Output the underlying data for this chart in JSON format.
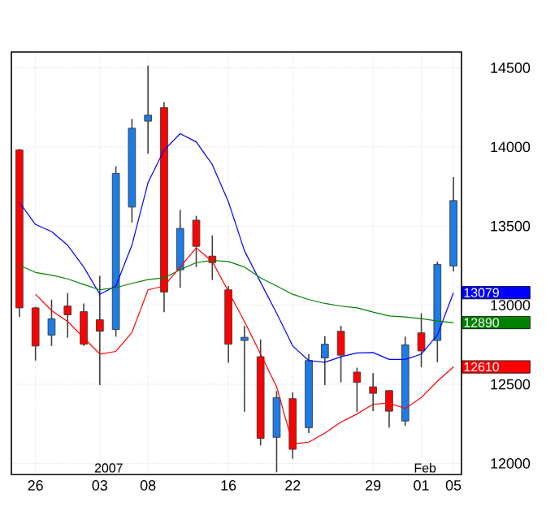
{
  "chart_data": {
    "type": "candlestick",
    "categories": [
      null,
      "26",
      null,
      null,
      null,
      "03",
      null,
      null,
      "08",
      null,
      null,
      null,
      null,
      "16",
      null,
      null,
      null,
      "22",
      null,
      null,
      null,
      null,
      "29",
      null,
      null,
      "01",
      null,
      "05"
    ],
    "ohlc": [
      [
        13981,
        13988,
        12925,
        12983
      ],
      [
        12983,
        12990,
        12650,
        12742
      ],
      [
        12811,
        13035,
        12742,
        12914
      ],
      [
        12994,
        13076,
        12794,
        12939
      ],
      [
        12959,
        13011,
        12742,
        12753
      ],
      [
        12908,
        13186,
        12495,
        12835
      ],
      [
        12846,
        13878,
        12801,
        13833
      ],
      [
        13620,
        14177,
        13523,
        14118
      ],
      [
        14163,
        14514,
        13957,
        14201
      ],
      [
        14249,
        14283,
        12956,
        13083
      ],
      [
        13224,
        13602,
        13110,
        13485
      ],
      [
        13537,
        13565,
        13241,
        13372
      ],
      [
        13310,
        13441,
        13159,
        13269
      ],
      [
        13097,
        13121,
        12636,
        12753
      ],
      [
        12777,
        12870,
        12326,
        12797
      ],
      [
        12674,
        12784,
        12113,
        12158
      ],
      [
        12165,
        12457,
        11944,
        12416
      ],
      [
        12409,
        12450,
        12030,
        12089
      ],
      [
        12226,
        12691,
        12192,
        12650
      ],
      [
        12667,
        12804,
        12495,
        12753
      ],
      [
        12835,
        12870,
        12512,
        12684
      ],
      [
        12577,
        12605,
        12326,
        12512
      ],
      [
        12484,
        12570,
        12330,
        12443
      ],
      [
        12460,
        12460,
        12226,
        12330
      ],
      [
        12268,
        12801,
        12237,
        12749
      ],
      [
        12825,
        12949,
        12608,
        12711
      ],
      [
        12777,
        13276,
        12639,
        13258
      ],
      [
        13248,
        13809,
        13214,
        13661
      ]
    ],
    "colors": [
      "#ff0000",
      "#ff0000",
      "#1c7ce8",
      "#ff0000",
      "#ff0000",
      "#ff0000",
      "#1c7ce8",
      "#1c7ce8",
      "#1c7ce8",
      "#ff0000",
      "#1c7ce8",
      "#ff0000",
      "#ff0000",
      "#ff0000",
      "#1c7ce8",
      "#ff0000",
      "#1c7ce8",
      "#ff0000",
      "#1c7ce8",
      "#1c7ce8",
      "#ff0000",
      "#ff0000",
      "#ff0000",
      "#ff0000",
      "#1c7ce8",
      "#ff0000",
      "#1c7ce8",
      "#1c7ce8"
    ],
    "series": [
      {
        "type": "line",
        "color": "#0000ff",
        "values": [
          13650,
          13510,
          13465,
          13379,
          13241,
          13069,
          13121,
          13379,
          13774,
          13981,
          14084,
          14032,
          13888,
          13654,
          13344,
          13145,
          12949,
          12742,
          12650,
          12639,
          12674,
          12698,
          12701,
          12657,
          12657,
          12691,
          12811,
          13079
        ],
        "value_labels": [
          null,
          null,
          null,
          null,
          null,
          null,
          null,
          null,
          null,
          null,
          null,
          null,
          null,
          null,
          null,
          null,
          null,
          null,
          null,
          null,
          null,
          null,
          null,
          null,
          null,
          null,
          null,
          "13079"
        ]
      },
      {
        "type": "line",
        "color": "#008000",
        "values": [
          13252,
          13207,
          13190,
          13166,
          13131,
          13097,
          13111,
          13138,
          13162,
          13173,
          13224,
          13269,
          13283,
          13276,
          13241,
          13173,
          13121,
          13069,
          13035,
          13011,
          12994,
          12983,
          12956,
          12932,
          12925,
          12915,
          12900,
          12890
        ],
        "value_labels": [
          null,
          null,
          null,
          null,
          null,
          null,
          null,
          null,
          null,
          null,
          null,
          null,
          null,
          null,
          null,
          null,
          null,
          null,
          null,
          null,
          null,
          null,
          null,
          null,
          null,
          null,
          null,
          "12890"
        ]
      },
      {
        "type": "line",
        "color": "#ff0000",
        "values": [
          null,
          13069,
          12966,
          12897,
          12794,
          12691,
          12708,
          12828,
          13097,
          13121,
          13241,
          13362,
          13276,
          13087,
          12897,
          12691,
          12484,
          12123,
          12134,
          12192,
          12261,
          12312,
          12374,
          12381,
          12347,
          12416,
          12519,
          12610
        ],
        "value_labels": [
          null,
          null,
          null,
          null,
          null,
          null,
          null,
          null,
          null,
          null,
          null,
          null,
          null,
          null,
          null,
          null,
          null,
          null,
          null,
          null,
          null,
          null,
          null,
          null,
          null,
          null,
          null,
          "12610"
        ]
      }
    ],
    "ylim": [
      11930,
      14600
    ],
    "yticks": [
      12000,
      12500,
      13000,
      13500,
      14000,
      14500
    ],
    "grid": true,
    "annotations": [
      "2007",
      "Feb"
    ]
  }
}
